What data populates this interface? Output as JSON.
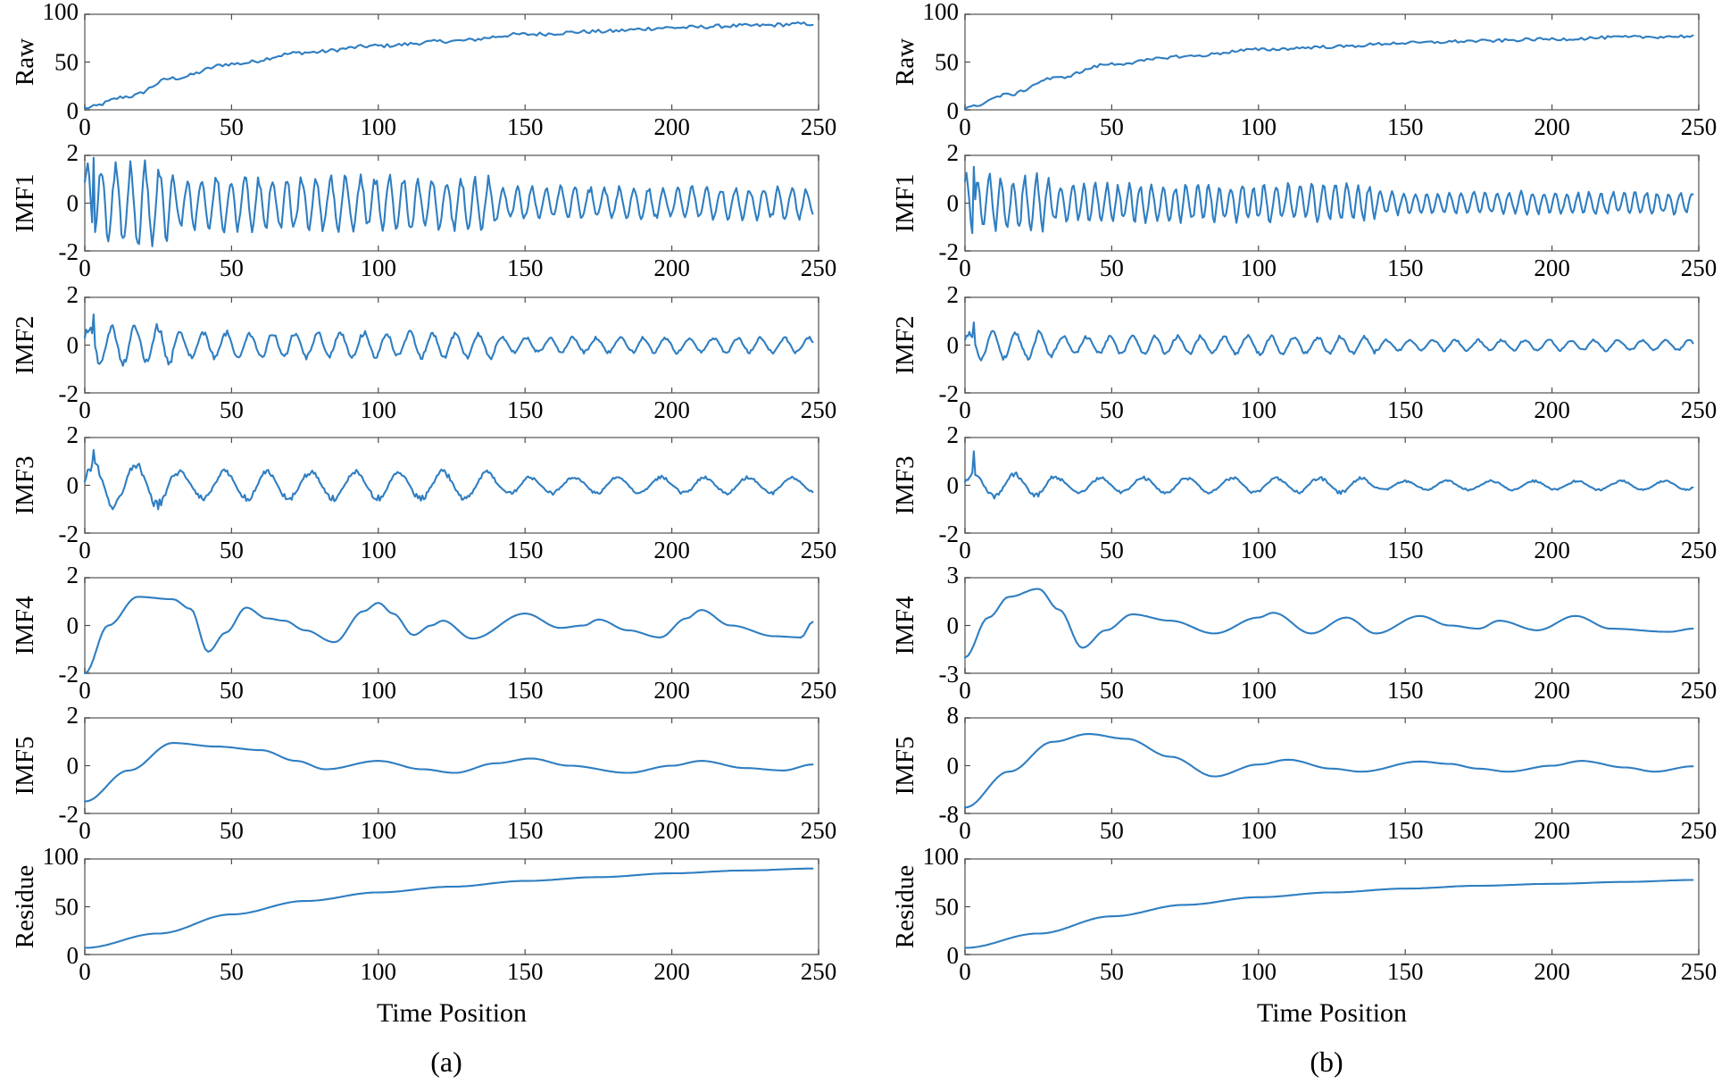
{
  "colors": {
    "series": "#2f7ec1",
    "axis": "#7d7d7d"
  },
  "chart_data": [
    {
      "type": "line",
      "caption": "(a)",
      "xlabel": "Time Position",
      "xlim": [
        0,
        250
      ],
      "xticks": [
        0,
        50,
        100,
        150,
        200,
        250
      ],
      "subplots": [
        {
          "ylabel": "Raw",
          "ylim": [
            0,
            100
          ],
          "yticks": [
            0,
            50,
            100
          ],
          "shape": "trend",
          "start": 2,
          "end": 90,
          "knots": [
            [
              0,
              2
            ],
            [
              15,
              14
            ],
            [
              30,
              33
            ],
            [
              50,
              48
            ],
            [
              75,
              60
            ],
            [
              100,
              67
            ],
            [
              125,
              72
            ],
            [
              150,
              79
            ],
            [
              175,
              82
            ],
            [
              200,
              86
            ],
            [
              225,
              88
            ],
            [
              248,
              90
            ]
          ],
          "noise": 2.0
        },
        {
          "ylabel": "IMF1",
          "ylim": [
            -2,
            2
          ],
          "yticks": [
            -2,
            0,
            2
          ],
          "shape": "osc",
          "amp": 1.0,
          "period": 5,
          "decay": "early-high",
          "peak": 2.0
        },
        {
          "ylabel": "IMF2",
          "ylim": [
            -2,
            2
          ],
          "yticks": [
            -2,
            0,
            2
          ],
          "shape": "osc",
          "amp": 0.5,
          "period": 8,
          "peak": 1.35
        },
        {
          "ylabel": "IMF3",
          "ylim": [
            -2,
            2
          ],
          "yticks": [
            -2,
            0,
            2
          ],
          "shape": "osc",
          "amp": 0.55,
          "period": 15,
          "peak": 1.55
        },
        {
          "ylabel": "IMF4",
          "ylim": [
            -2,
            2
          ],
          "yticks": [
            -2,
            0,
            2
          ],
          "shape": "knots",
          "knots": [
            [
              0,
              -2
            ],
            [
              8,
              0
            ],
            [
              18,
              1.2
            ],
            [
              30,
              1.1
            ],
            [
              36,
              0.7
            ],
            [
              42,
              -1.1
            ],
            [
              48,
              -0.3
            ],
            [
              55,
              0.75
            ],
            [
              62,
              0.3
            ],
            [
              68,
              0.2
            ],
            [
              75,
              -0.2
            ],
            [
              85,
              -0.7
            ],
            [
              95,
              0.6
            ],
            [
              100,
              0.95
            ],
            [
              105,
              0.5
            ],
            [
              112,
              -0.4
            ],
            [
              118,
              0.0
            ],
            [
              122,
              0.2
            ],
            [
              132,
              -0.55
            ],
            [
              150,
              0.5
            ],
            [
              162,
              -0.1
            ],
            [
              170,
              0.0
            ],
            [
              175,
              0.25
            ],
            [
              185,
              -0.2
            ],
            [
              196,
              -0.5
            ],
            [
              205,
              0.3
            ],
            [
              210,
              0.65
            ],
            [
              220,
              0.0
            ],
            [
              235,
              -0.45
            ],
            [
              244,
              -0.5
            ],
            [
              248,
              0.15
            ]
          ]
        },
        {
          "ylabel": "IMF5",
          "ylim": [
            -2,
            2
          ],
          "yticks": [
            -2,
            0,
            2
          ],
          "shape": "knots",
          "knots": [
            [
              0,
              -1.5
            ],
            [
              15,
              -0.2
            ],
            [
              30,
              0.95
            ],
            [
              45,
              0.8
            ],
            [
              60,
              0.65
            ],
            [
              72,
              0.2
            ],
            [
              82,
              -0.15
            ],
            [
              100,
              0.2
            ],
            [
              115,
              -0.15
            ],
            [
              126,
              -0.3
            ],
            [
              140,
              0.1
            ],
            [
              152,
              0.3
            ],
            [
              165,
              0.0
            ],
            [
              185,
              -0.3
            ],
            [
              200,
              0.0
            ],
            [
              210,
              0.2
            ],
            [
              225,
              -0.1
            ],
            [
              238,
              -0.2
            ],
            [
              248,
              0.05
            ]
          ]
        },
        {
          "ylabel": "Residue",
          "ylim": [
            0,
            100
          ],
          "yticks": [
            0,
            50,
            100
          ],
          "shape": "knots",
          "knots": [
            [
              0,
              7
            ],
            [
              25,
              22
            ],
            [
              50,
              42
            ],
            [
              75,
              56
            ],
            [
              100,
              65
            ],
            [
              125,
              71
            ],
            [
              150,
              77
            ],
            [
              175,
              81
            ],
            [
              200,
              85
            ],
            [
              225,
              88
            ],
            [
              248,
              90
            ]
          ]
        }
      ]
    },
    {
      "type": "line",
      "caption": "(b)",
      "xlabel": "Time Position",
      "xlim": [
        0,
        250
      ],
      "xticks": [
        0,
        50,
        100,
        150,
        200,
        250
      ],
      "subplots": [
        {
          "ylabel": "Raw",
          "ylim": [
            0,
            100
          ],
          "yticks": [
            0,
            50,
            100
          ],
          "shape": "trend",
          "knots": [
            [
              0,
              2
            ],
            [
              15,
              16
            ],
            [
              30,
              33
            ],
            [
              50,
              48
            ],
            [
              75,
              56
            ],
            [
              100,
              63
            ],
            [
              125,
              66
            ],
            [
              150,
              70
            ],
            [
              175,
              72
            ],
            [
              200,
              74
            ],
            [
              225,
              76
            ],
            [
              248,
              77
            ]
          ],
          "noise": 1.6
        },
        {
          "ylabel": "IMF1",
          "ylim": [
            -2,
            2
          ],
          "yticks": [
            -2,
            0,
            2
          ],
          "shape": "osc",
          "amp": 0.7,
          "period": 4,
          "peak": 1.6
        },
        {
          "ylabel": "IMF2",
          "ylim": [
            -2,
            2
          ],
          "yticks": [
            -2,
            0,
            2
          ],
          "shape": "osc",
          "amp": 0.35,
          "period": 8,
          "peak": 1.0
        },
        {
          "ylabel": "IMF3",
          "ylim": [
            -2,
            2
          ],
          "yticks": [
            -2,
            0,
            2
          ],
          "shape": "osc",
          "amp": 0.3,
          "period": 15,
          "peak": 1.5
        },
        {
          "ylabel": "IMF4",
          "ylim": [
            -3,
            3
          ],
          "yticks": [
            -3,
            0,
            3
          ],
          "shape": "knots",
          "knots": [
            [
              0,
              -2
            ],
            [
              8,
              0.5
            ],
            [
              15,
              1.8
            ],
            [
              25,
              2.3
            ],
            [
              32,
              1.0
            ],
            [
              40,
              -1.4
            ],
            [
              48,
              -0.3
            ],
            [
              57,
              0.7
            ],
            [
              70,
              0.3
            ],
            [
              85,
              -0.5
            ],
            [
              100,
              0.5
            ],
            [
              105,
              0.8
            ],
            [
              118,
              -0.5
            ],
            [
              130,
              0.5
            ],
            [
              140,
              -0.5
            ],
            [
              155,
              0.6
            ],
            [
              165,
              0.0
            ],
            [
              175,
              -0.2
            ],
            [
              182,
              0.3
            ],
            [
              195,
              -0.3
            ],
            [
              208,
              0.6
            ],
            [
              220,
              -0.2
            ],
            [
              240,
              -0.4
            ],
            [
              248,
              -0.2
            ]
          ]
        },
        {
          "ylabel": "IMF5",
          "ylim": [
            -8,
            8
          ],
          "yticks": [
            -8,
            0,
            8
          ],
          "shape": "knots",
          "knots": [
            [
              0,
              -7
            ],
            [
              15,
              -1
            ],
            [
              30,
              4
            ],
            [
              42,
              5.3
            ],
            [
              55,
              4.5
            ],
            [
              70,
              1.5
            ],
            [
              85,
              -1.8
            ],
            [
              100,
              0.2
            ],
            [
              110,
              1.0
            ],
            [
              125,
              -0.5
            ],
            [
              135,
              -1.0
            ],
            [
              155,
              0.7
            ],
            [
              165,
              0.3
            ],
            [
              175,
              -0.5
            ],
            [
              185,
              -1.0
            ],
            [
              200,
              0.0
            ],
            [
              210,
              0.8
            ],
            [
              225,
              -0.3
            ],
            [
              235,
              -1.0
            ],
            [
              248,
              -0.1
            ]
          ]
        },
        {
          "ylabel": "Residue",
          "ylim": [
            0,
            100
          ],
          "yticks": [
            0,
            50,
            100
          ],
          "shape": "knots",
          "knots": [
            [
              0,
              7
            ],
            [
              25,
              22
            ],
            [
              50,
              40
            ],
            [
              75,
              52
            ],
            [
              100,
              60
            ],
            [
              125,
              65
            ],
            [
              150,
              69
            ],
            [
              175,
              72
            ],
            [
              200,
              74
            ],
            [
              225,
              76
            ],
            [
              248,
              78
            ]
          ]
        }
      ]
    }
  ]
}
